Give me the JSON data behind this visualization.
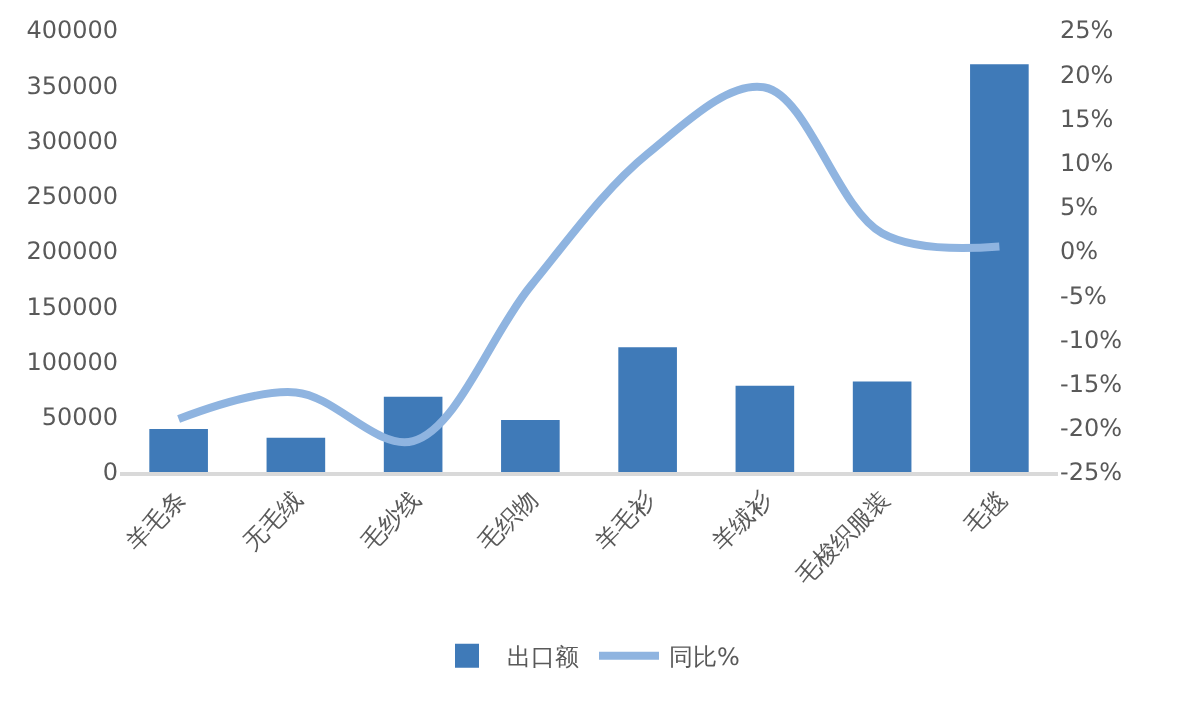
{
  "chart_data": {
    "type": "bar",
    "categories": [
      "羊毛条",
      "无毛绒",
      "毛纱线",
      "毛织物",
      "羊毛衫",
      "羊绒衫",
      "毛梭织服装",
      "毛毯"
    ],
    "series": [
      {
        "name": "出口额",
        "color": "#3f7ab8",
        "values": [
          39000,
          31000,
          68000,
          47000,
          113000,
          78000,
          82000,
          369000
        ]
      },
      {
        "name": "同比%",
        "type": "line",
        "axis": "y2",
        "color": "#8fb4e0",
        "values": [
          -19,
          -16,
          -21.5,
          -4,
          11,
          18.5,
          2,
          0.5
        ]
      }
    ],
    "ylim": [
      0,
      400000
    ],
    "yticks": [
      0,
      50000,
      100000,
      150000,
      200000,
      250000,
      300000,
      350000,
      400000
    ],
    "y2lim": [
      -25,
      25
    ],
    "y2ticks": [
      {
        "value": -25,
        "label": "-25%"
      },
      {
        "value": -20,
        "label": "-20%"
      },
      {
        "value": -15,
        "label": "-15%"
      },
      {
        "value": -10,
        "label": "-10%"
      },
      {
        "value": -5,
        "label": "-5%"
      },
      {
        "value": 0,
        "label": "0%"
      },
      {
        "value": 5,
        "label": "5%"
      },
      {
        "value": 10,
        "label": "10%"
      },
      {
        "value": 15,
        "label": "15%"
      },
      {
        "value": 20,
        "label": "20%"
      },
      {
        "value": 25,
        "label": "25%"
      }
    ],
    "grid": false,
    "legend": "bottom"
  }
}
